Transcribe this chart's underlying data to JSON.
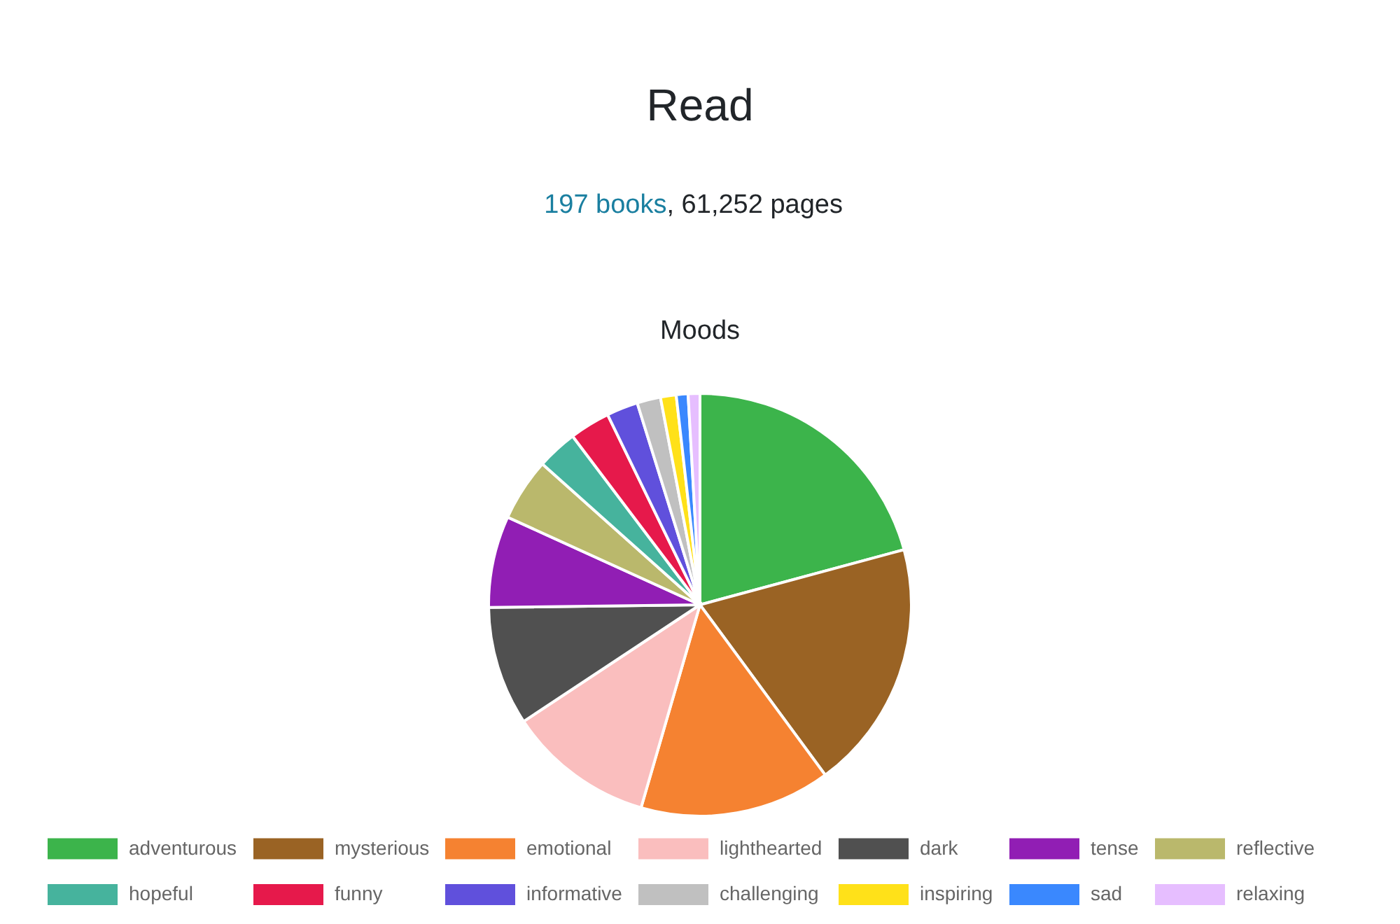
{
  "chart_data": {
    "type": "pie",
    "title": "Read",
    "subtitle": "197 books, 61,252 pages",
    "annotations": [
      "Moods"
    ],
    "categories": [
      "adventurous",
      "mysterious",
      "emotional",
      "lighthearted",
      "dark",
      "tense",
      "reflective",
      "hopeful",
      "funny",
      "informative",
      "challenging",
      "inspiring",
      "sad",
      "relaxing"
    ],
    "values": [
      20.8,
      19.1,
      14.6,
      11.2,
      9.1,
      7.0,
      4.8,
      3.1,
      3.1,
      2.4,
      1.8,
      1.2,
      0.9,
      0.9
    ],
    "colors": [
      "#3cb44b",
      "#9a6324",
      "#f58231",
      "#fabebe",
      "#505050",
      "#911eb4",
      "#bab86c",
      "#46b39d",
      "#e6194b",
      "#6050dc",
      "#c0c0c0",
      "#ffe119",
      "#3a88fe",
      "#e6beff"
    ],
    "legend": "bottom"
  }
}
